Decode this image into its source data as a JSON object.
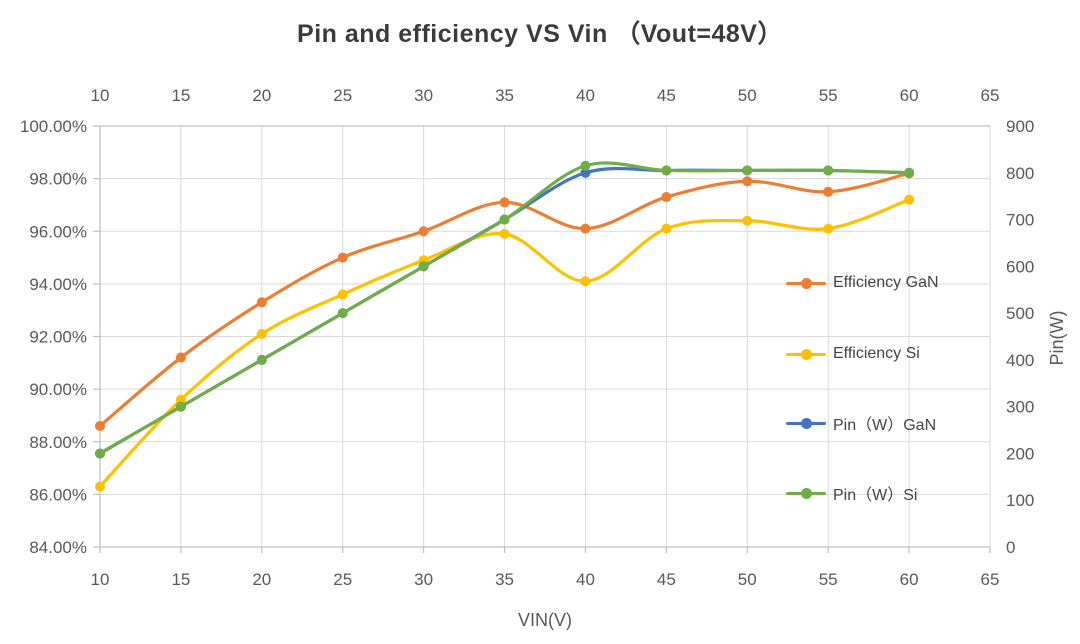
{
  "chart_data": {
    "type": "line",
    "title": "Pin and efficiency VS Vin （Vout=48V）",
    "smooth": true,
    "grid": true,
    "x": [
      10,
      15,
      20,
      25,
      30,
      35,
      40,
      45,
      50,
      55,
      60
    ],
    "x_axis": {
      "label": "VIN(V)",
      "min": 10,
      "max": 65,
      "tick_step": 5,
      "ticks": [
        10,
        15,
        20,
        25,
        30,
        35,
        40,
        45,
        50,
        55,
        60,
        65
      ],
      "tick_labels_shown": "top and bottom"
    },
    "y_axis_left": {
      "label": "",
      "min": 84,
      "max": 100,
      "tick_step": 2,
      "format": "percent-2-decimals",
      "tick_labels": [
        "84.00%",
        "86.00%",
        "88.00%",
        "90.00%",
        "92.00%",
        "94.00%",
        "96.00%",
        "98.00%",
        "100.00%"
      ]
    },
    "y_axis_right": {
      "label": "Pin(W)",
      "min": 0,
      "max": 900,
      "tick_step": 100,
      "ticks": [
        0,
        100,
        200,
        300,
        400,
        500,
        600,
        700,
        800,
        900
      ]
    },
    "series": [
      {
        "name": "Efficiency GaN",
        "axis": "left",
        "unit": "%",
        "color": "#ED7D31",
        "values": [
          88.6,
          91.2,
          93.3,
          95.0,
          96.0,
          97.1,
          96.1,
          97.3,
          97.9,
          97.5,
          98.2
        ]
      },
      {
        "name": "Efficiency Si",
        "axis": "left",
        "unit": "%",
        "color": "#FFC000",
        "values": [
          86.3,
          89.6,
          92.1,
          93.6,
          94.9,
          95.9,
          94.1,
          96.1,
          96.4,
          96.1,
          97.2
        ]
      },
      {
        "name": "Pin（W）GaN",
        "axis": "right",
        "unit": "W",
        "color": "#4472C4",
        "values": [
          200,
          300,
          400,
          500,
          600,
          700,
          800,
          805,
          805,
          805,
          800
        ]
      },
      {
        "name": "Pin（W）Si",
        "axis": "right",
        "unit": "W",
        "color": "#70AD47",
        "values": [
          200,
          300,
          400,
          500,
          600,
          700,
          815,
          805,
          805,
          805,
          800
        ]
      }
    ],
    "legend": {
      "position": "inside-right",
      "entries": [
        "Efficiency GaN",
        "Efficiency Si",
        "Pin（W）GaN",
        "Pin（W）Si"
      ]
    }
  },
  "colors": {
    "background": "#FFFFFF",
    "gridline": "#D9D9D9",
    "axis_line": "#BFBFBF",
    "tick_text": "#595959",
    "title_text": "#3B3B3B"
  }
}
